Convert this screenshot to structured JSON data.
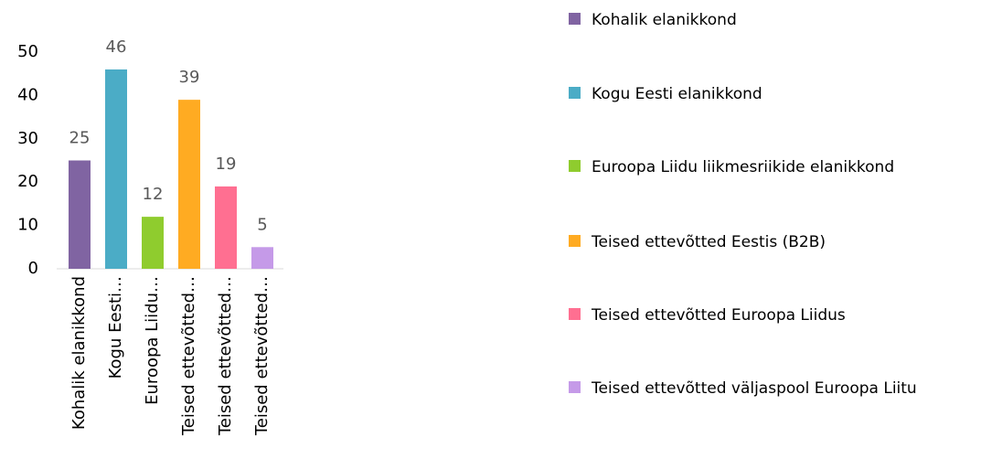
{
  "chart_data": {
    "type": "bar",
    "categories": [
      "Kohalik elanikkond",
      "Kogu Eesti…",
      "Euroopa Liidu…",
      "Teised ettevõtted…",
      "Teised ettevõtted…",
      "Teised ettevõtted…"
    ],
    "values": [
      25,
      46,
      12,
      39,
      19,
      5
    ],
    "colors": [
      "#8064a2",
      "#4bacc6",
      "#8fcc2e",
      "#ffab22",
      "#ff6f91",
      "#c59ae8"
    ],
    "legend": [
      "Kohalik elanikkond",
      "Kogu Eesti elanikkond",
      "Euroopa Liidu liikmesriikide elanikkond",
      "Teised ettevõtted Eestis (B2B)",
      "Teised ettevõtted Euroopa Liidus",
      "Teised ettevõtted väljaspool Euroopa Liitu"
    ],
    "ylim": [
      0,
      50
    ],
    "yticks": [
      0,
      10,
      20,
      30,
      40,
      50
    ],
    "grid": false
  }
}
